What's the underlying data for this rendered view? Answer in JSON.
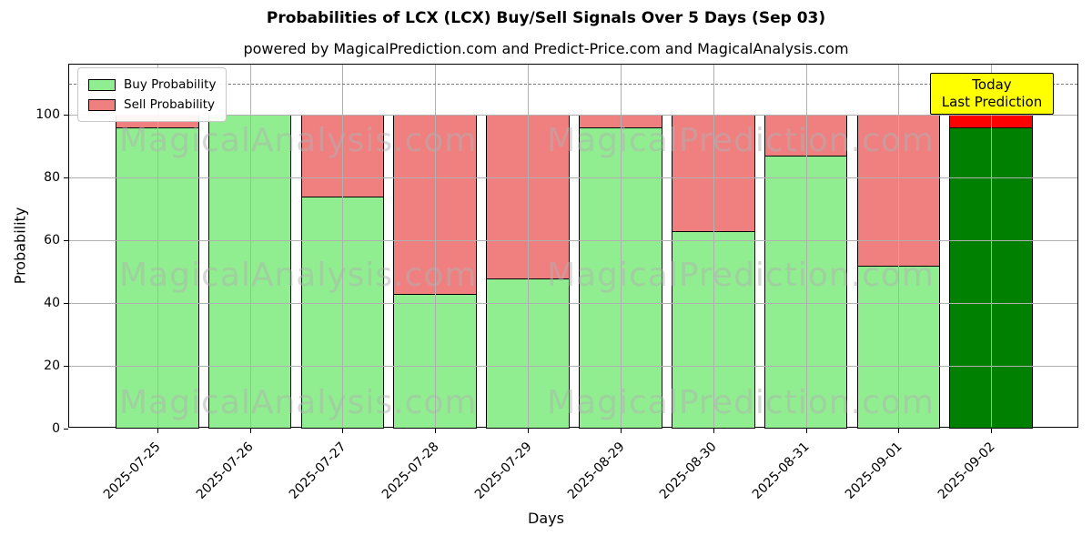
{
  "title": "Probabilities of LCX (LCX) Buy/Sell Signals Over 5 Days (Sep 03)",
  "subtitle": "powered by MagicalPrediction.com and Predict-Price.com and MagicalAnalysis.com",
  "legend": {
    "items": [
      {
        "label": "Buy Probability",
        "color": "#90EE90"
      },
      {
        "label": "Sell Probability",
        "color": "#F08080"
      }
    ]
  },
  "annotation": {
    "line1": "Today",
    "line2": "Last Prediction",
    "bg_color": "#FFFF00"
  },
  "watermarks": {
    "left_text": "MagicalAnalysis.com",
    "right_text": "MagicalPrediction.com",
    "rows": 3
  },
  "chart_data": {
    "type": "bar",
    "stacked": true,
    "title": "Probabilities of LCX (LCX) Buy/Sell Signals Over 5 Days (Sep 03)",
    "xlabel": "Days",
    "ylabel": "Probability",
    "categories": [
      "2025-07-25",
      "2025-07-26",
      "2025-07-27",
      "2025-07-28",
      "2025-07-29",
      "2025-08-29",
      "2025-08-30",
      "2025-08-31",
      "2025-09-01",
      "2025-09-02"
    ],
    "series": [
      {
        "name": "Buy Probability",
        "color": "#90EE90",
        "today_color": "#008000",
        "values": [
          96,
          100,
          74,
          43,
          48,
          96,
          63,
          87,
          52,
          96
        ]
      },
      {
        "name": "Sell Probability",
        "color": "#F08080",
        "today_color": "#FF0000",
        "values": [
          4,
          0,
          26,
          57,
          52,
          4,
          37,
          13,
          48,
          4
        ]
      }
    ],
    "today_index": 9,
    "ylim": [
      0,
      116
    ],
    "yticks": [
      0,
      20,
      40,
      60,
      80,
      100
    ],
    "dashed_line_y": 110,
    "grid": true,
    "legend_position": "upper left",
    "bar_edge_color": "#000000"
  }
}
